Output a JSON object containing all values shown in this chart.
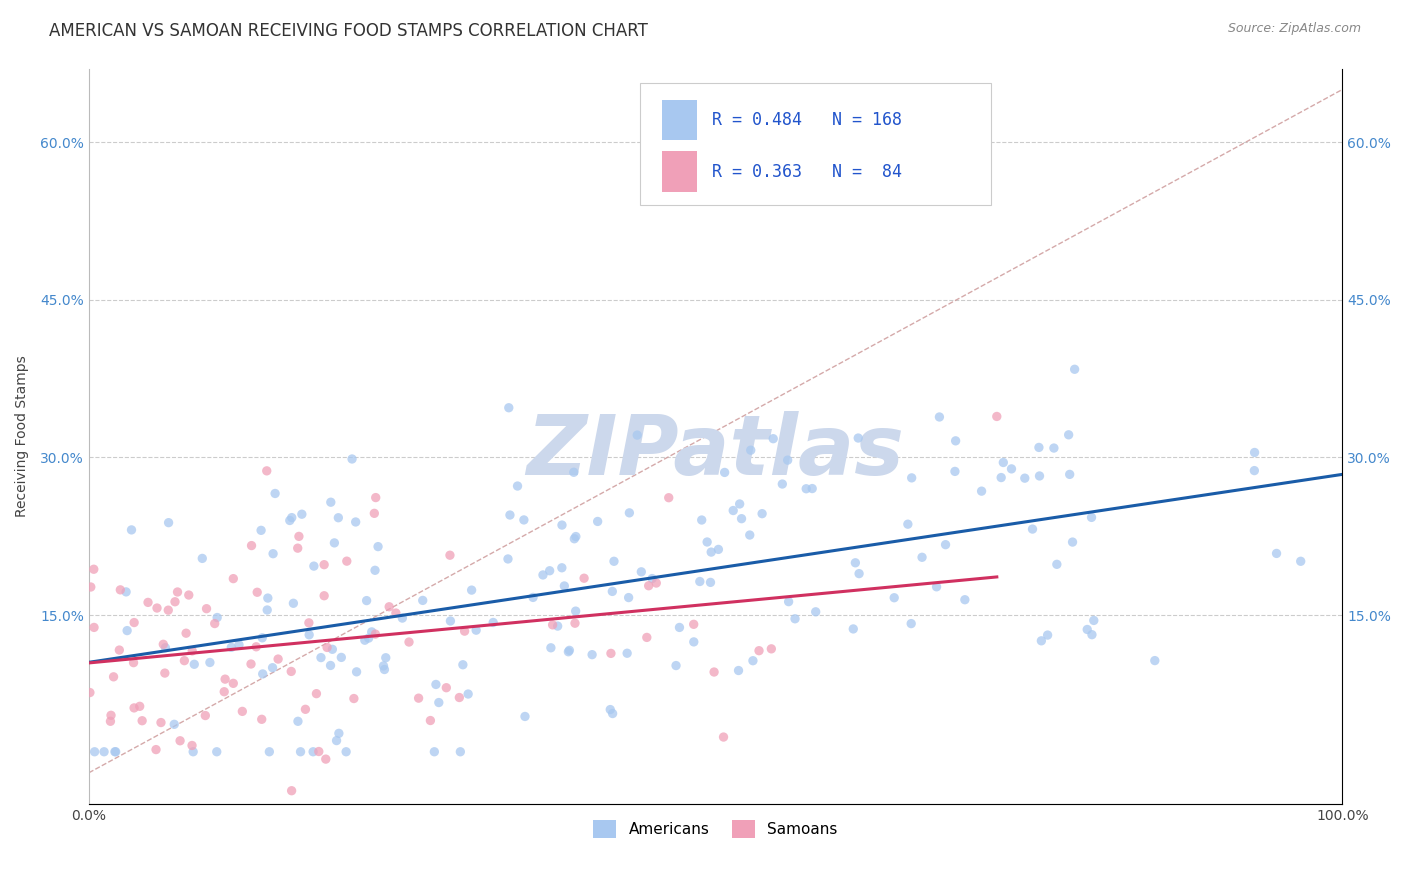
{
  "title": "AMERICAN VS SAMOAN RECEIVING FOOD STAMPS CORRELATION CHART",
  "source": "Source: ZipAtlas.com",
  "ylabel": "Receiving Food Stamps",
  "xlim": [
    0.0,
    1.0
  ],
  "ylim": [
    -0.03,
    0.67
  ],
  "x_ticks": [
    0.0,
    0.25,
    0.5,
    0.75,
    1.0
  ],
  "x_tick_labels": [
    "0.0%",
    "",
    "",
    "",
    "100.0%"
  ],
  "y_ticks": [
    0.15,
    0.3,
    0.45,
    0.6
  ],
  "y_tick_labels": [
    "15.0%",
    "30.0%",
    "45.0%",
    "60.0%"
  ],
  "R_american": 0.484,
  "N_american": 168,
  "R_samoan": 0.363,
  "N_samoan": 84,
  "american_color": "#a8c8f0",
  "samoan_color": "#f0a0b8",
  "regression_american_color": "#1a5ca8",
  "regression_samoan_color": "#d03060",
  "diagonal_color": "#d0a0a0",
  "background_color": "#ffffff",
  "watermark": "ZIPatlas",
  "watermark_color": "#ccd8ec",
  "title_fontsize": 12,
  "axis_label_fontsize": 10,
  "tick_fontsize": 10,
  "legend_fontsize": 12
}
